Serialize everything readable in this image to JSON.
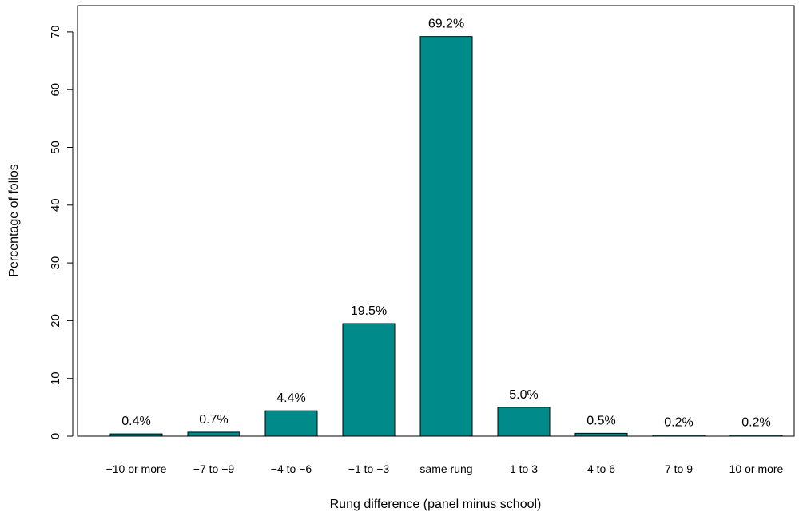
{
  "chart_data": {
    "type": "bar",
    "categories": [
      "−10 or more",
      "−7 to −9",
      "−4 to −6",
      "−1 to −3",
      "same rung",
      "1 to 3",
      "4 to 6",
      "7 to 9",
      "10 or more"
    ],
    "values": [
      0.4,
      0.7,
      4.4,
      19.5,
      69.2,
      5.0,
      0.5,
      0.2,
      0.2
    ],
    "data_labels": [
      "0.4%",
      "0.7%",
      "4.4%",
      "19.5%",
      "69.2%",
      "5.0%",
      "0.5%",
      "0.2%",
      "0.2%"
    ],
    "title": "",
    "xlabel": "Rung difference (panel minus school)",
    "ylabel": "Percentage of folios",
    "ylim": [
      0,
      75
    ],
    "yticks": [
      0,
      10,
      20,
      30,
      40,
      50,
      60,
      70
    ],
    "ytick_labels": [
      "0",
      "10",
      "20",
      "30",
      "40",
      "50",
      "60",
      "70"
    ],
    "bar_color": "#008B8B",
    "grid": false,
    "legend": "none"
  }
}
